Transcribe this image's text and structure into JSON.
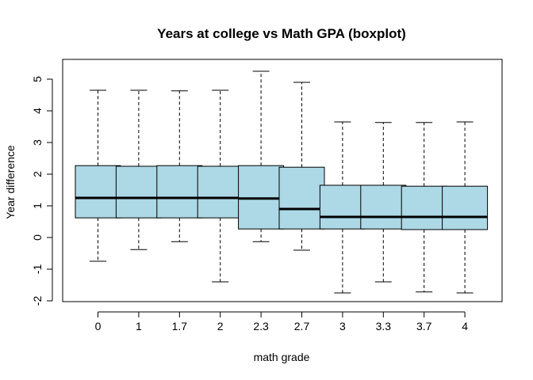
{
  "chart_data": {
    "type": "boxplot",
    "title": "Years at college vs Math GPA (boxplot)",
    "xlabel": "math grade",
    "ylabel": "Year difference",
    "categories": [
      "0",
      "1",
      "1.7",
      "2",
      "2.3",
      "2.7",
      "3",
      "3.3",
      "3.7",
      "4"
    ],
    "boxes": [
      {
        "category": "0",
        "whisker_low": -0.75,
        "q1": 0.62,
        "median": 1.25,
        "q3": 2.27,
        "whisker_high": 4.65
      },
      {
        "category": "1",
        "whisker_low": -0.38,
        "q1": 0.62,
        "median": 1.25,
        "q3": 2.25,
        "whisker_high": 4.65
      },
      {
        "category": "1.7",
        "whisker_low": -0.13,
        "q1": 0.62,
        "median": 1.25,
        "q3": 2.27,
        "whisker_high": 4.63
      },
      {
        "category": "2",
        "whisker_low": -1.4,
        "q1": 0.62,
        "median": 1.25,
        "q3": 2.25,
        "whisker_high": 4.65
      },
      {
        "category": "2.3",
        "whisker_low": -0.13,
        "q1": 0.27,
        "median": 1.23,
        "q3": 2.27,
        "whisker_high": 5.25
      },
      {
        "category": "2.7",
        "whisker_low": -0.4,
        "q1": 0.27,
        "median": 0.9,
        "q3": 2.22,
        "whisker_high": 4.9
      },
      {
        "category": "3",
        "whisker_low": -1.75,
        "q1": 0.27,
        "median": 0.65,
        "q3": 1.65,
        "whisker_high": 3.65
      },
      {
        "category": "3.3",
        "whisker_low": -1.4,
        "q1": 0.27,
        "median": 0.65,
        "q3": 1.65,
        "whisker_high": 3.63
      },
      {
        "category": "3.7",
        "whisker_low": -1.72,
        "q1": 0.25,
        "median": 0.65,
        "q3": 1.62,
        "whisker_high": 3.63
      },
      {
        "category": "4",
        "whisker_low": -1.75,
        "q1": 0.25,
        "median": 0.65,
        "q3": 1.62,
        "whisker_high": 3.65
      }
    ],
    "ylim": [
      -2.05,
      5.5
    ],
    "yticks": [
      -2,
      -1,
      0,
      1,
      2,
      3,
      4,
      5
    ],
    "grid": false,
    "legend": "none",
    "box_fill": "#add8e6",
    "line_color": "#000000"
  }
}
